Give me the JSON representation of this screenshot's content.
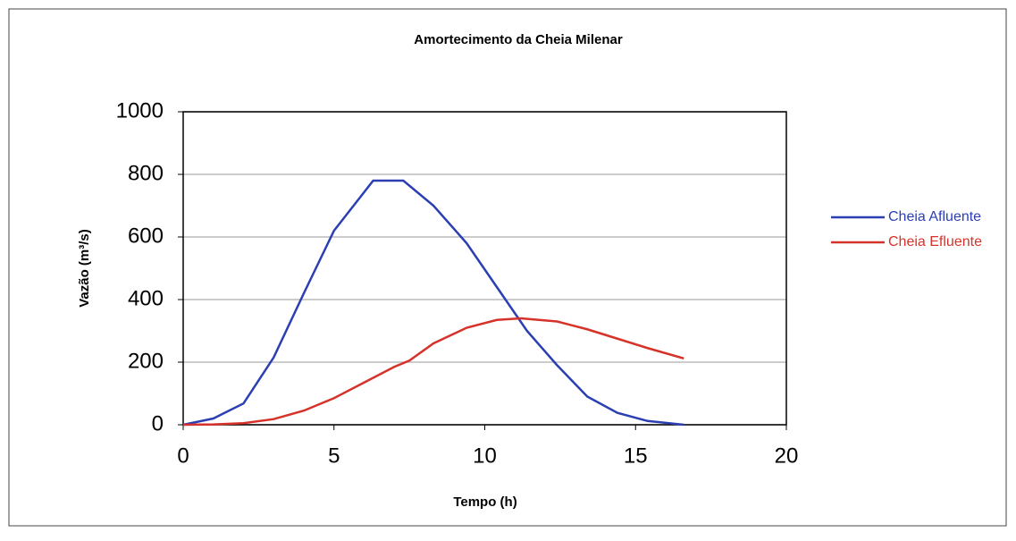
{
  "chart_data": {
    "type": "line",
    "title": "Amortecimento da Cheia Milenar",
    "x_label": "Tempo (h)",
    "y_label": "Vazão (m³/s)",
    "xlim": [
      0,
      20
    ],
    "xticks": [
      0,
      5,
      10,
      15,
      20
    ],
    "ylim": [
      0,
      1000
    ],
    "yticks": [
      0,
      200,
      400,
      600,
      800,
      1000
    ],
    "grid": true,
    "legend": "right",
    "series": [
      {
        "name": "Cheia Afluente",
        "color": "#2b3fb3",
        "x": [
          0,
          1,
          2,
          3,
          4,
          5,
          6.3,
          7.3,
          8.3,
          9.4,
          10.4,
          11.4,
          12.4,
          13.4,
          14.4,
          15.4,
          16.6
        ],
        "values": [
          0,
          20,
          68,
          215,
          420,
          620,
          780,
          780,
          700,
          580,
          440,
          300,
          190,
          90,
          38,
          12,
          0
        ]
      },
      {
        "name": "Cheia Efluente",
        "color": "#d6322a",
        "x": [
          0,
          1,
          2,
          3,
          4,
          5,
          6,
          7,
          7.5,
          8.3,
          9.4,
          10.4,
          11.2,
          12.4,
          13.4,
          14.4,
          15.4,
          16.6
        ],
        "values": [
          0,
          1,
          5,
          18,
          45,
          85,
          135,
          185,
          205,
          260,
          310,
          335,
          340,
          330,
          305,
          275,
          245,
          212
        ]
      }
    ]
  }
}
